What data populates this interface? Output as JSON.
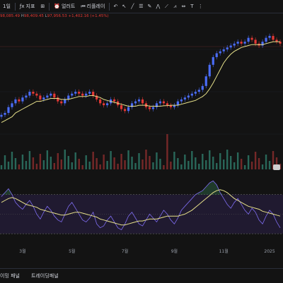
{
  "toolbar": {
    "interval": "1일",
    "indicators_label": "지표",
    "alert_label": "얼러트",
    "replay_label": "리플레이"
  },
  "ohlc": {
    "open": "98,085.49",
    "high_label": "H",
    "high": "98,409.45",
    "low_label": "L",
    "low": "97,956.53",
    "change": "+1,402.16 (+1.45%)"
  },
  "bottom": {
    "tab1": "이밍 패널",
    "tab2": "트레이딩패널"
  },
  "colors": {
    "background": "#131313",
    "candle_up": "#4a6cf7",
    "candle_down": "#e53935",
    "ma": "#e6e08a",
    "rsi": "#7e6cf0",
    "rsi_ma": "#e6e08a",
    "rsi_band": "#2a1f45",
    "volume_up": "#2f7d6b",
    "volume_down": "#8e2e2e"
  },
  "chart_data": {
    "type": "line",
    "title": "",
    "x_axis_labels": [
      "3월",
      "5월",
      "7월",
      "9월",
      "11월",
      "2025"
    ],
    "price": {
      "name": "",
      "x": [
        0,
        1,
        2,
        3,
        4,
        5,
        6,
        7,
        8,
        9,
        10,
        11,
        12,
        13,
        14,
        15,
        16,
        17,
        18,
        19,
        20,
        21,
        22,
        23,
        24,
        25,
        26,
        27,
        28,
        29,
        30,
        31,
        32,
        33,
        34,
        35,
        36,
        37,
        38,
        39,
        40,
        41,
        42,
        43,
        44,
        45,
        46,
        47,
        48,
        49,
        50,
        51,
        52,
        53,
        54,
        55,
        56,
        57,
        58,
        59,
        60,
        61,
        62,
        63,
        64,
        65,
        66,
        67,
        68,
        69,
        70,
        71,
        72,
        73,
        74,
        75,
        76,
        77,
        78,
        79
      ],
      "close": [
        60,
        61,
        64,
        66,
        68,
        67,
        69,
        70,
        72,
        71,
        70,
        68,
        69,
        70,
        71,
        69,
        67,
        66,
        68,
        70,
        71,
        72,
        71,
        70,
        71,
        72,
        70,
        68,
        66,
        65,
        66,
        68,
        67,
        65,
        63,
        62,
        64,
        66,
        67,
        68,
        66,
        64,
        63,
        64,
        66,
        67,
        66,
        65,
        64,
        65,
        67,
        68,
        69,
        70,
        71,
        72,
        73,
        75,
        80,
        86,
        90,
        92,
        93,
        94,
        95,
        96,
        97,
        98,
        97,
        98,
        100,
        99,
        97,
        96,
        98,
        100,
        101,
        99,
        98,
        97
      ],
      "ma": [
        56,
        57,
        58,
        59,
        61,
        62,
        63,
        64,
        65,
        66,
        67,
        67,
        67.5,
        68,
        68.5,
        68.5,
        68.5,
        68,
        68,
        68,
        68.5,
        69,
        69.5,
        69.5,
        69.5,
        70,
        70,
        69.5,
        69,
        68,
        67.5,
        67,
        66.5,
        66,
        65.5,
        65,
        64.5,
        64.5,
        64.5,
        65,
        65,
        65,
        64.5,
        64.5,
        64.5,
        64.5,
        64.7,
        64.8,
        65,
        65,
        65,
        65.5,
        66,
        66.5,
        67,
        67.5,
        68.5,
        69.5,
        71,
        73.5,
        76.5,
        80,
        83.5,
        87,
        89.5,
        91.5,
        93,
        94,
        95,
        95.5,
        96,
        96.5,
        96.5,
        96.5,
        96.5,
        97,
        97.5,
        98,
        98,
        98
      ]
    },
    "rsi": {
      "values": [
        68,
        72,
        76,
        70,
        62,
        58,
        55,
        60,
        64,
        58,
        50,
        45,
        52,
        58,
        54,
        48,
        44,
        42,
        50,
        58,
        62,
        56,
        50,
        44,
        42,
        46,
        52,
        40,
        36,
        38,
        44,
        48,
        42,
        36,
        34,
        40,
        48,
        52,
        46,
        40,
        38,
        44,
        50,
        46,
        42,
        48,
        54,
        50,
        44,
        40,
        46,
        54,
        58,
        62,
        66,
        70,
        72,
        74,
        78,
        82,
        84,
        80,
        72,
        66,
        60,
        56,
        62,
        66,
        60,
        54,
        50,
        56,
        52,
        44,
        40,
        48,
        54,
        50,
        42,
        36
      ],
      "ma": [
        62,
        64,
        66,
        67,
        66,
        64,
        62,
        60,
        59,
        58,
        57,
        55,
        54,
        53,
        52,
        51,
        50,
        49,
        49,
        50,
        51,
        52,
        52,
        51,
        50,
        49,
        48,
        47,
        45,
        44,
        43,
        42,
        41,
        40,
        39,
        39,
        40,
        41,
        42,
        43,
        43,
        44,
        45,
        45,
        45,
        46,
        47,
        48,
        48,
        48,
        48,
        49,
        50,
        52,
        54,
        57,
        60,
        63,
        66,
        69,
        72,
        74,
        75,
        74,
        72,
        69,
        66,
        64,
        62,
        60,
        58,
        57,
        56,
        55,
        53,
        52,
        51,
        50,
        49,
        48
      ],
      "upper": 70,
      "lower": 30,
      "ylim": [
        20,
        90
      ]
    }
  }
}
